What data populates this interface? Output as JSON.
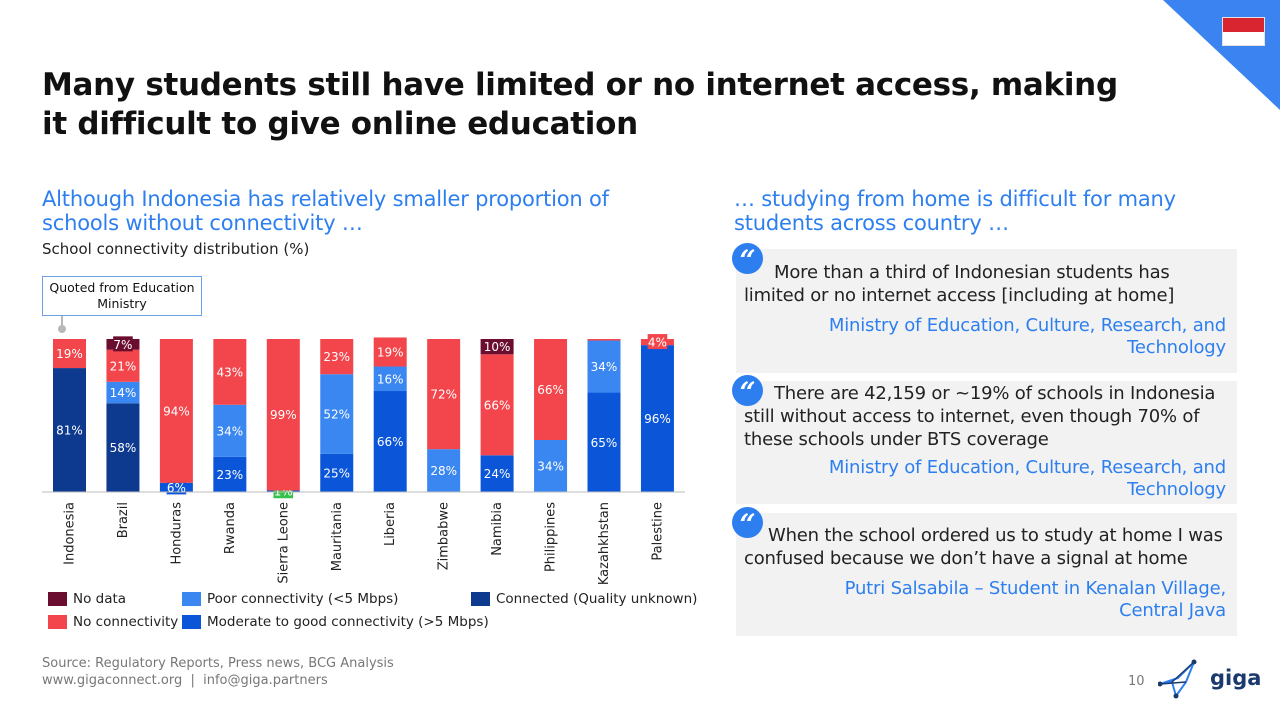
{
  "title": "Many students still have limited or no internet access, making it difficult to give online education",
  "left": {
    "subtitle": "Although Indonesia has relatively smaller proportion of schools without connectivity …",
    "caption": "School connectivity distribution (%)",
    "callout": "Quoted from Education Ministry"
  },
  "right": {
    "subtitle": "… studying from home is difficult for many students across country …",
    "quotes": [
      {
        "mark": "“",
        "text": "More than a third of Indonesian students has limited or no internet access [including at home]",
        "source": "Ministry of Education, Culture, Research, and Technology"
      },
      {
        "mark": "“",
        "text": "There are 42,159 or ~19% of schools in Indonesia still without access to internet, even though 70% of these schools under BTS coverage",
        "source": "Ministry of Education, Culture, Research, and Technology"
      },
      {
        "mark": "“",
        "text": "When the school ordered us to study at home I was confused because we don’t have a signal at home",
        "source": "Putri Salsabila – Student in Kenalan Village, Central Java"
      }
    ]
  },
  "legend": [
    {
      "key": "no_data",
      "label": "No data",
      "color": "#6b0d2f"
    },
    {
      "key": "no_connectivity",
      "label": "No connectivity",
      "color": "#f2464c"
    },
    {
      "key": "poor",
      "label": "Poor connectivity (<5 Mbps)",
      "color": "#3a87f2"
    },
    {
      "key": "moderate",
      "label": "Moderate to good connectivity (>5 Mbps)",
      "color": "#0b55d9"
    },
    {
      "key": "connected",
      "label": "Connected (Quality unknown)",
      "color": "#0d3a8e"
    }
  ],
  "chart_data": {
    "type": "bar",
    "stacked": true,
    "ylim": [
      0,
      100
    ],
    "grid": false,
    "legend_position": "bottom",
    "categories": [
      "Indonesia",
      "Brazil",
      "Honduras",
      "Rwanda",
      "Sierra Leone",
      "Mauritania",
      "Liberia",
      "Zimbabwe",
      "Namibia",
      "Philippines",
      "Kazahkhstan",
      "Palestine"
    ],
    "series": [
      {
        "name": "Connected (Quality unknown)",
        "key": "connected",
        "color": "#0d3a8e",
        "values": [
          81,
          58,
          0,
          0,
          0,
          0,
          0,
          0,
          0,
          0,
          0,
          0
        ],
        "labels": [
          "81%",
          "58%",
          "",
          "",
          "",
          "",
          "",
          "",
          "",
          "",
          "",
          ""
        ]
      },
      {
        "name": "Moderate to good connectivity (>5 Mbps)",
        "key": "moderate",
        "color": "#0b55d9",
        "values": [
          0,
          0,
          6,
          23,
          1,
          25,
          66,
          0,
          24,
          0,
          65,
          96
        ],
        "labels": [
          "",
          "",
          "6%",
          "23%",
          "1%",
          "25%",
          "66%",
          "",
          "24%",
          "",
          "65%",
          "96%"
        ]
      },
      {
        "name": "Poor connectivity (<5 Mbps)",
        "key": "poor",
        "color": "#3a87f2",
        "values": [
          0,
          14,
          0,
          34,
          0,
          52,
          16,
          28,
          0,
          34,
          34,
          0
        ],
        "labels": [
          "",
          "14%",
          "",
          "34%",
          "",
          "52%",
          "16%",
          "28%",
          "",
          "34%",
          "34%",
          ""
        ]
      },
      {
        "name": "No connectivity",
        "key": "no_connectivity",
        "color": "#f2464c",
        "values": [
          19,
          21,
          94,
          43,
          99,
          23,
          19,
          72,
          66,
          66,
          1,
          4
        ],
        "labels": [
          "19%",
          "21%",
          "94%",
          "43%",
          "99%",
          "23%",
          "19%",
          "72%",
          "66%",
          "66%",
          "",
          "4%"
        ]
      },
      {
        "name": "No data",
        "key": "no_data",
        "color": "#6b0d2f",
        "values": [
          0,
          7,
          0,
          0,
          0,
          0,
          0,
          0,
          10,
          0,
          0,
          0
        ],
        "labels": [
          "",
          "7%",
          "",
          "",
          "",
          "",
          "",
          "",
          "10%",
          "",
          "",
          ""
        ]
      }
    ]
  },
  "footer": {
    "source": "Source: Regulatory Reports, Press news, BCG Analysis",
    "links": "www.gigaconnect.org  |  info@giga.partners",
    "page": "10",
    "logo_text": "giga"
  }
}
